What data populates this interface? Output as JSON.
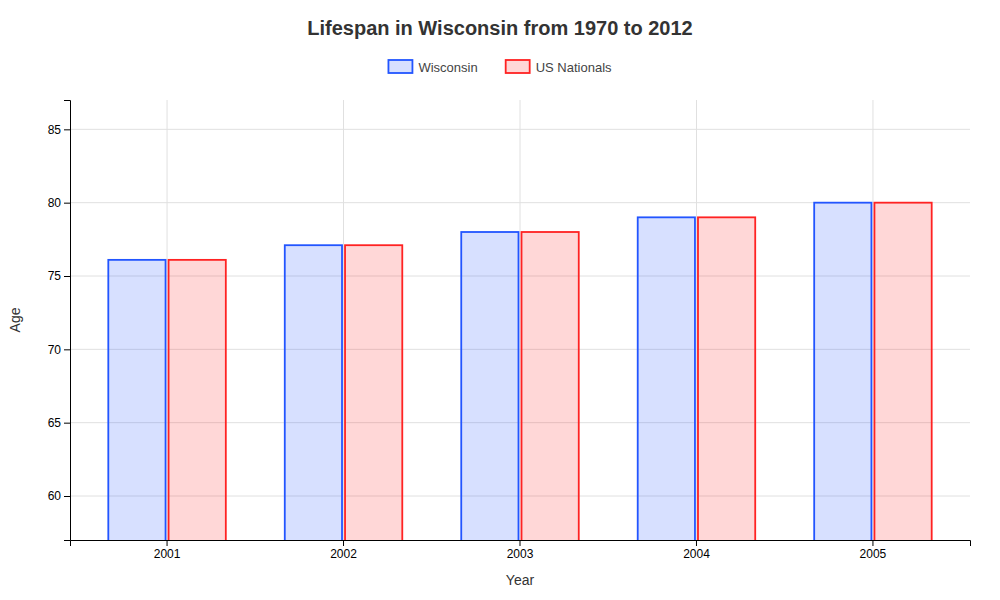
{
  "chart_data": {
    "type": "bar",
    "title": "Lifespan in Wisconsin from 1970 to 2012",
    "xlabel": "Year",
    "ylabel": "Age",
    "categories": [
      "2001",
      "2002",
      "2003",
      "2004",
      "2005"
    ],
    "series": [
      {
        "name": "Wisconsin",
        "color": "#2255ff",
        "values": [
          76.1,
          77.1,
          78.0,
          79.0,
          80.0
        ]
      },
      {
        "name": "US Nationals",
        "color": "#ff2222",
        "values": [
          76.1,
          77.1,
          78.0,
          79.0,
          80.0
        ]
      }
    ],
    "ylim": [
      57,
      87
    ],
    "yticks": [
      60,
      65,
      70,
      75,
      80,
      85
    ],
    "grid": true,
    "legend": "top"
  }
}
